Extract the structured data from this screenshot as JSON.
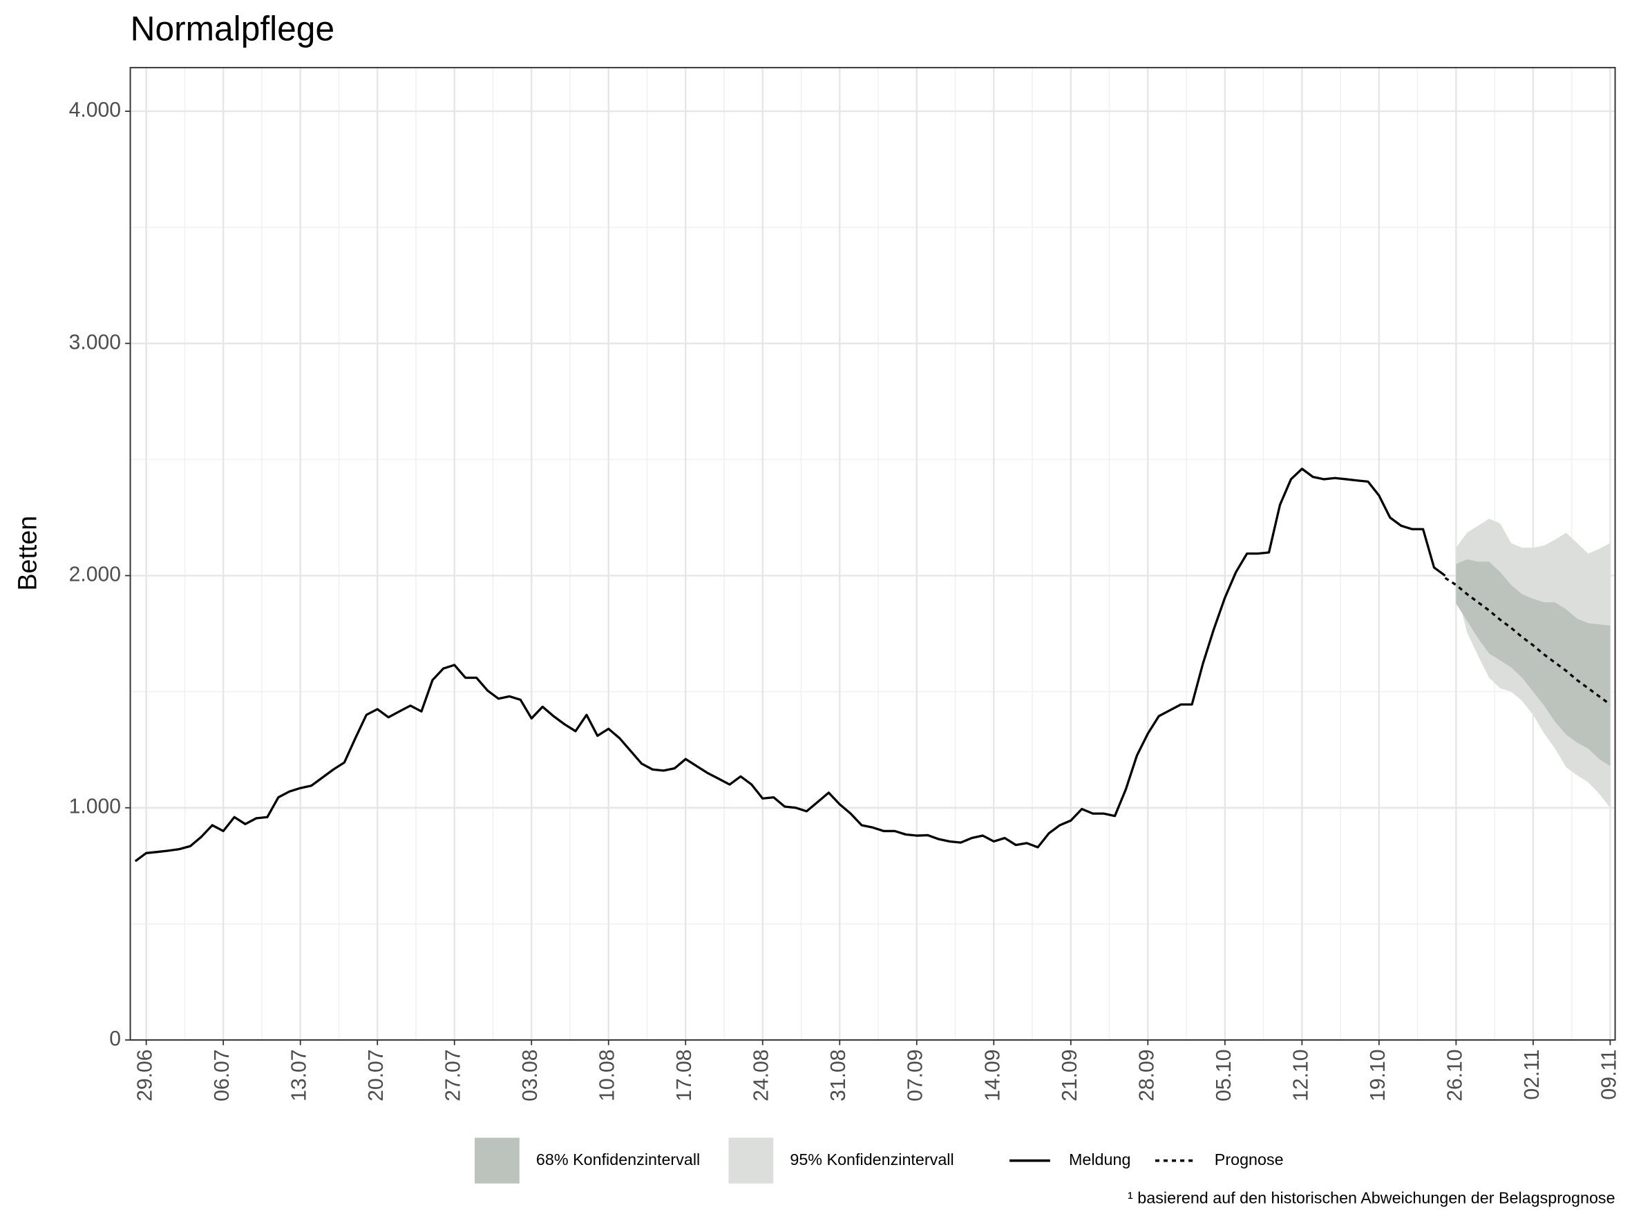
{
  "chart_data": {
    "type": "line",
    "title": "Normalpflege",
    "ylabel": "Betten",
    "footnote": "¹ basierend auf den historischen Abweichungen der Belagsprognose",
    "legend": "bottom",
    "grid": true,
    "x": [
      "28.06",
      "29.06",
      "30.06",
      "01.07",
      "02.07",
      "03.07",
      "04.07",
      "05.07",
      "06.07",
      "07.07",
      "08.07",
      "09.07",
      "10.07",
      "11.07",
      "12.07",
      "13.07",
      "14.07",
      "15.07",
      "16.07",
      "17.07",
      "18.07",
      "19.07",
      "20.07",
      "21.07",
      "22.07",
      "23.07",
      "24.07",
      "25.07",
      "26.07",
      "27.07",
      "28.07",
      "29.07",
      "30.07",
      "31.07",
      "01.08",
      "02.08",
      "03.08",
      "04.08",
      "05.08",
      "06.08",
      "07.08",
      "08.08",
      "09.08",
      "10.08",
      "11.08",
      "12.08",
      "13.08",
      "14.08",
      "15.08",
      "16.08",
      "17.08",
      "18.08",
      "19.08",
      "20.08",
      "21.08",
      "22.08",
      "23.08",
      "24.08",
      "25.08",
      "26.08",
      "27.08",
      "28.08",
      "29.08",
      "30.08",
      "31.08",
      "01.09",
      "02.09",
      "03.09",
      "04.09",
      "05.09",
      "06.09",
      "07.09",
      "08.09",
      "09.09",
      "10.09",
      "11.09",
      "12.09",
      "13.09",
      "14.09",
      "15.09",
      "16.09",
      "17.09",
      "18.09",
      "19.09",
      "20.09",
      "21.09",
      "22.09",
      "23.09",
      "24.09",
      "25.09",
      "26.09",
      "27.09",
      "28.09",
      "29.09",
      "30.09",
      "01.10",
      "02.10",
      "03.10",
      "04.10",
      "05.10",
      "06.10",
      "07.10",
      "08.10",
      "09.10",
      "10.10",
      "11.10",
      "12.10",
      "13.10",
      "14.10",
      "15.10",
      "16.10",
      "17.10",
      "18.10",
      "19.10",
      "20.10",
      "21.10",
      "22.10",
      "23.10",
      "24.10",
      "25.10",
      "26.10",
      "27.10",
      "28.10",
      "29.10",
      "30.10",
      "31.10",
      "01.11",
      "02.11",
      "03.11",
      "04.11",
      "05.11",
      "06.11",
      "07.11",
      "08.11",
      "09.11"
    ],
    "xlim": [
      "28.06",
      "09.11"
    ],
    "xticks": [
      "29.06",
      "06.07",
      "13.07",
      "20.07",
      "27.07",
      "03.08",
      "10.08",
      "17.08",
      "24.08",
      "31.08",
      "07.09",
      "14.09",
      "21.09",
      "28.09",
      "05.10",
      "12.10",
      "19.10",
      "26.10",
      "02.11",
      "09.11"
    ],
    "ylim": [
      0,
      4188
    ],
    "yticks": [
      0,
      {
        "value": 1000,
        "label": "1.000"
      },
      {
        "value": 2000,
        "label": "2.000"
      },
      {
        "value": 3000,
        "label": "3.000"
      },
      {
        "value": 4000,
        "label": "4.000"
      }
    ],
    "bands": [
      {
        "name": "95% Konfidenzintervall",
        "color": "#dcdedc",
        "lower": [
          null,
          null,
          null,
          null,
          null,
          null,
          null,
          null,
          null,
          null,
          null,
          null,
          null,
          null,
          null,
          null,
          null,
          null,
          null,
          null,
          null,
          null,
          null,
          null,
          null,
          null,
          null,
          null,
          null,
          null,
          null,
          null,
          null,
          null,
          null,
          null,
          null,
          null,
          null,
          null,
          null,
          null,
          null,
          null,
          null,
          null,
          null,
          null,
          null,
          null,
          null,
          null,
          null,
          null,
          null,
          null,
          null,
          null,
          null,
          null,
          null,
          null,
          null,
          null,
          null,
          null,
          null,
          null,
          null,
          null,
          null,
          null,
          null,
          null,
          null,
          null,
          null,
          null,
          null,
          null,
          null,
          null,
          null,
          null,
          null,
          null,
          null,
          null,
          null,
          null,
          null,
          null,
          null,
          null,
          null,
          null,
          null,
          null,
          null,
          null,
          null,
          null,
          null,
          null,
          null,
          null,
          null,
          null,
          null,
          null,
          null,
          null,
          null,
          null,
          null,
          null,
          null,
          null,
          null,
          null,
          1950,
          1755,
          1655,
          1560,
          1515,
          1500,
          1460,
          1400,
          1320,
          1255,
          1175,
          1140,
          1110,
          1060,
          1000
        ],
        "upper": [
          null,
          null,
          null,
          null,
          null,
          null,
          null,
          null,
          null,
          null,
          null,
          null,
          null,
          null,
          null,
          null,
          null,
          null,
          null,
          null,
          null,
          null,
          null,
          null,
          null,
          null,
          null,
          null,
          null,
          null,
          null,
          null,
          null,
          null,
          null,
          null,
          null,
          null,
          null,
          null,
          null,
          null,
          null,
          null,
          null,
          null,
          null,
          null,
          null,
          null,
          null,
          null,
          null,
          null,
          null,
          null,
          null,
          null,
          null,
          null,
          null,
          null,
          null,
          null,
          null,
          null,
          null,
          null,
          null,
          null,
          null,
          null,
          null,
          null,
          null,
          null,
          null,
          null,
          null,
          null,
          null,
          null,
          null,
          null,
          null,
          null,
          null,
          null,
          null,
          null,
          null,
          null,
          null,
          null,
          null,
          null,
          null,
          null,
          null,
          null,
          null,
          null,
          null,
          null,
          null,
          null,
          null,
          null,
          null,
          null,
          null,
          null,
          null,
          null,
          null,
          null,
          null,
          null,
          null,
          null,
          2120,
          2185,
          2215,
          2245,
          2225,
          2140,
          2120,
          2120,
          2130,
          2155,
          2185,
          2140,
          2095,
          2115,
          2140
        ]
      },
      {
        "name": "68% Konfidenzintervall",
        "color": "#bcc2bc",
        "lower": [
          null,
          null,
          null,
          null,
          null,
          null,
          null,
          null,
          null,
          null,
          null,
          null,
          null,
          null,
          null,
          null,
          null,
          null,
          null,
          null,
          null,
          null,
          null,
          null,
          null,
          null,
          null,
          null,
          null,
          null,
          null,
          null,
          null,
          null,
          null,
          null,
          null,
          null,
          null,
          null,
          null,
          null,
          null,
          null,
          null,
          null,
          null,
          null,
          null,
          null,
          null,
          null,
          null,
          null,
          null,
          null,
          null,
          null,
          null,
          null,
          null,
          null,
          null,
          null,
          null,
          null,
          null,
          null,
          null,
          null,
          null,
          null,
          null,
          null,
          null,
          null,
          null,
          null,
          null,
          null,
          null,
          null,
          null,
          null,
          null,
          null,
          null,
          null,
          null,
          null,
          null,
          null,
          null,
          null,
          null,
          null,
          null,
          null,
          null,
          null,
          null,
          null,
          null,
          null,
          null,
          null,
          null,
          null,
          null,
          null,
          null,
          null,
          null,
          null,
          null,
          null,
          null,
          null,
          null,
          null,
          1880,
          1805,
          1730,
          1665,
          1635,
          1605,
          1560,
          1500,
          1440,
          1370,
          1315,
          1280,
          1255,
          1210,
          1180
        ],
        "upper": [
          null,
          null,
          null,
          null,
          null,
          null,
          null,
          null,
          null,
          null,
          null,
          null,
          null,
          null,
          null,
          null,
          null,
          null,
          null,
          null,
          null,
          null,
          null,
          null,
          null,
          null,
          null,
          null,
          null,
          null,
          null,
          null,
          null,
          null,
          null,
          null,
          null,
          null,
          null,
          null,
          null,
          null,
          null,
          null,
          null,
          null,
          null,
          null,
          null,
          null,
          null,
          null,
          null,
          null,
          null,
          null,
          null,
          null,
          null,
          null,
          null,
          null,
          null,
          null,
          null,
          null,
          null,
          null,
          null,
          null,
          null,
          null,
          null,
          null,
          null,
          null,
          null,
          null,
          null,
          null,
          null,
          null,
          null,
          null,
          null,
          null,
          null,
          null,
          null,
          null,
          null,
          null,
          null,
          null,
          null,
          null,
          null,
          null,
          null,
          null,
          null,
          null,
          null,
          null,
          null,
          null,
          null,
          null,
          null,
          null,
          null,
          null,
          null,
          null,
          null,
          null,
          null,
          null,
          null,
          null,
          2050,
          2070,
          2060,
          2060,
          2015,
          1960,
          1920,
          1900,
          1885,
          1885,
          1855,
          1815,
          1795,
          1790,
          1785
        ]
      }
    ],
    "series": [
      {
        "name": "Meldung",
        "color": "#000000",
        "dash": "solid",
        "values": [
          770,
          805,
          810,
          815,
          822,
          835,
          875,
          925,
          900,
          960,
          930,
          955,
          960,
          1045,
          1070,
          1085,
          1095,
          1130,
          1165,
          1195,
          1300,
          1400,
          1425,
          1390,
          1415,
          1440,
          1415,
          1550,
          1600,
          1615,
          1560,
          1560,
          1505,
          1470,
          1480,
          1465,
          1385,
          1435,
          1395,
          1360,
          1330,
          1400,
          1310,
          1340,
          1300,
          1245,
          1190,
          1165,
          1160,
          1170,
          1210,
          1180,
          1150,
          1125,
          1100,
          1135,
          1100,
          1040,
          1045,
          1005,
          1000,
          985,
          1025,
          1065,
          1015,
          975,
          925,
          915,
          900,
          900,
          885,
          880,
          882,
          865,
          855,
          850,
          870,
          880,
          855,
          870,
          840,
          848,
          830,
          890,
          925,
          945,
          995,
          975,
          975,
          965,
          1080,
          1225,
          1320,
          1395,
          1420,
          1445,
          1445,
          1620,
          1770,
          1905,
          2015,
          2095,
          2095,
          2100,
          2305,
          2415,
          2460,
          2425,
          2415,
          2420,
          2415,
          2410,
          2405,
          2345,
          2250,
          2215,
          2200,
          2200,
          2035,
          2000,
          null,
          null,
          null,
          null,
          null,
          null,
          null,
          null,
          null,
          null,
          null,
          null,
          null,
          null,
          null
        ]
      },
      {
        "name": "Prognose",
        "color": "#000000",
        "dash": "dotted",
        "values": [
          null,
          null,
          null,
          null,
          null,
          null,
          null,
          null,
          null,
          null,
          null,
          null,
          null,
          null,
          null,
          null,
          null,
          null,
          null,
          null,
          null,
          null,
          null,
          null,
          null,
          null,
          null,
          null,
          null,
          null,
          null,
          null,
          null,
          null,
          null,
          null,
          null,
          null,
          null,
          null,
          null,
          null,
          null,
          null,
          null,
          null,
          null,
          null,
          null,
          null,
          null,
          null,
          null,
          null,
          null,
          null,
          null,
          null,
          null,
          null,
          null,
          null,
          null,
          null,
          null,
          null,
          null,
          null,
          null,
          null,
          null,
          null,
          null,
          null,
          null,
          null,
          null,
          null,
          null,
          null,
          null,
          null,
          null,
          null,
          null,
          null,
          null,
          null,
          null,
          null,
          null,
          null,
          null,
          null,
          null,
          null,
          null,
          null,
          null,
          null,
          null,
          null,
          null,
          null,
          null,
          null,
          null,
          null,
          null,
          null,
          null,
          null,
          null,
          null,
          null,
          null,
          null,
          null,
          null,
          1990,
          1960,
          1920,
          1885,
          1850,
          1810,
          1775,
          1735,
          1700,
          1660,
          1625,
          1590,
          1550,
          1515,
          1480,
          1445
        ]
      }
    ]
  }
}
